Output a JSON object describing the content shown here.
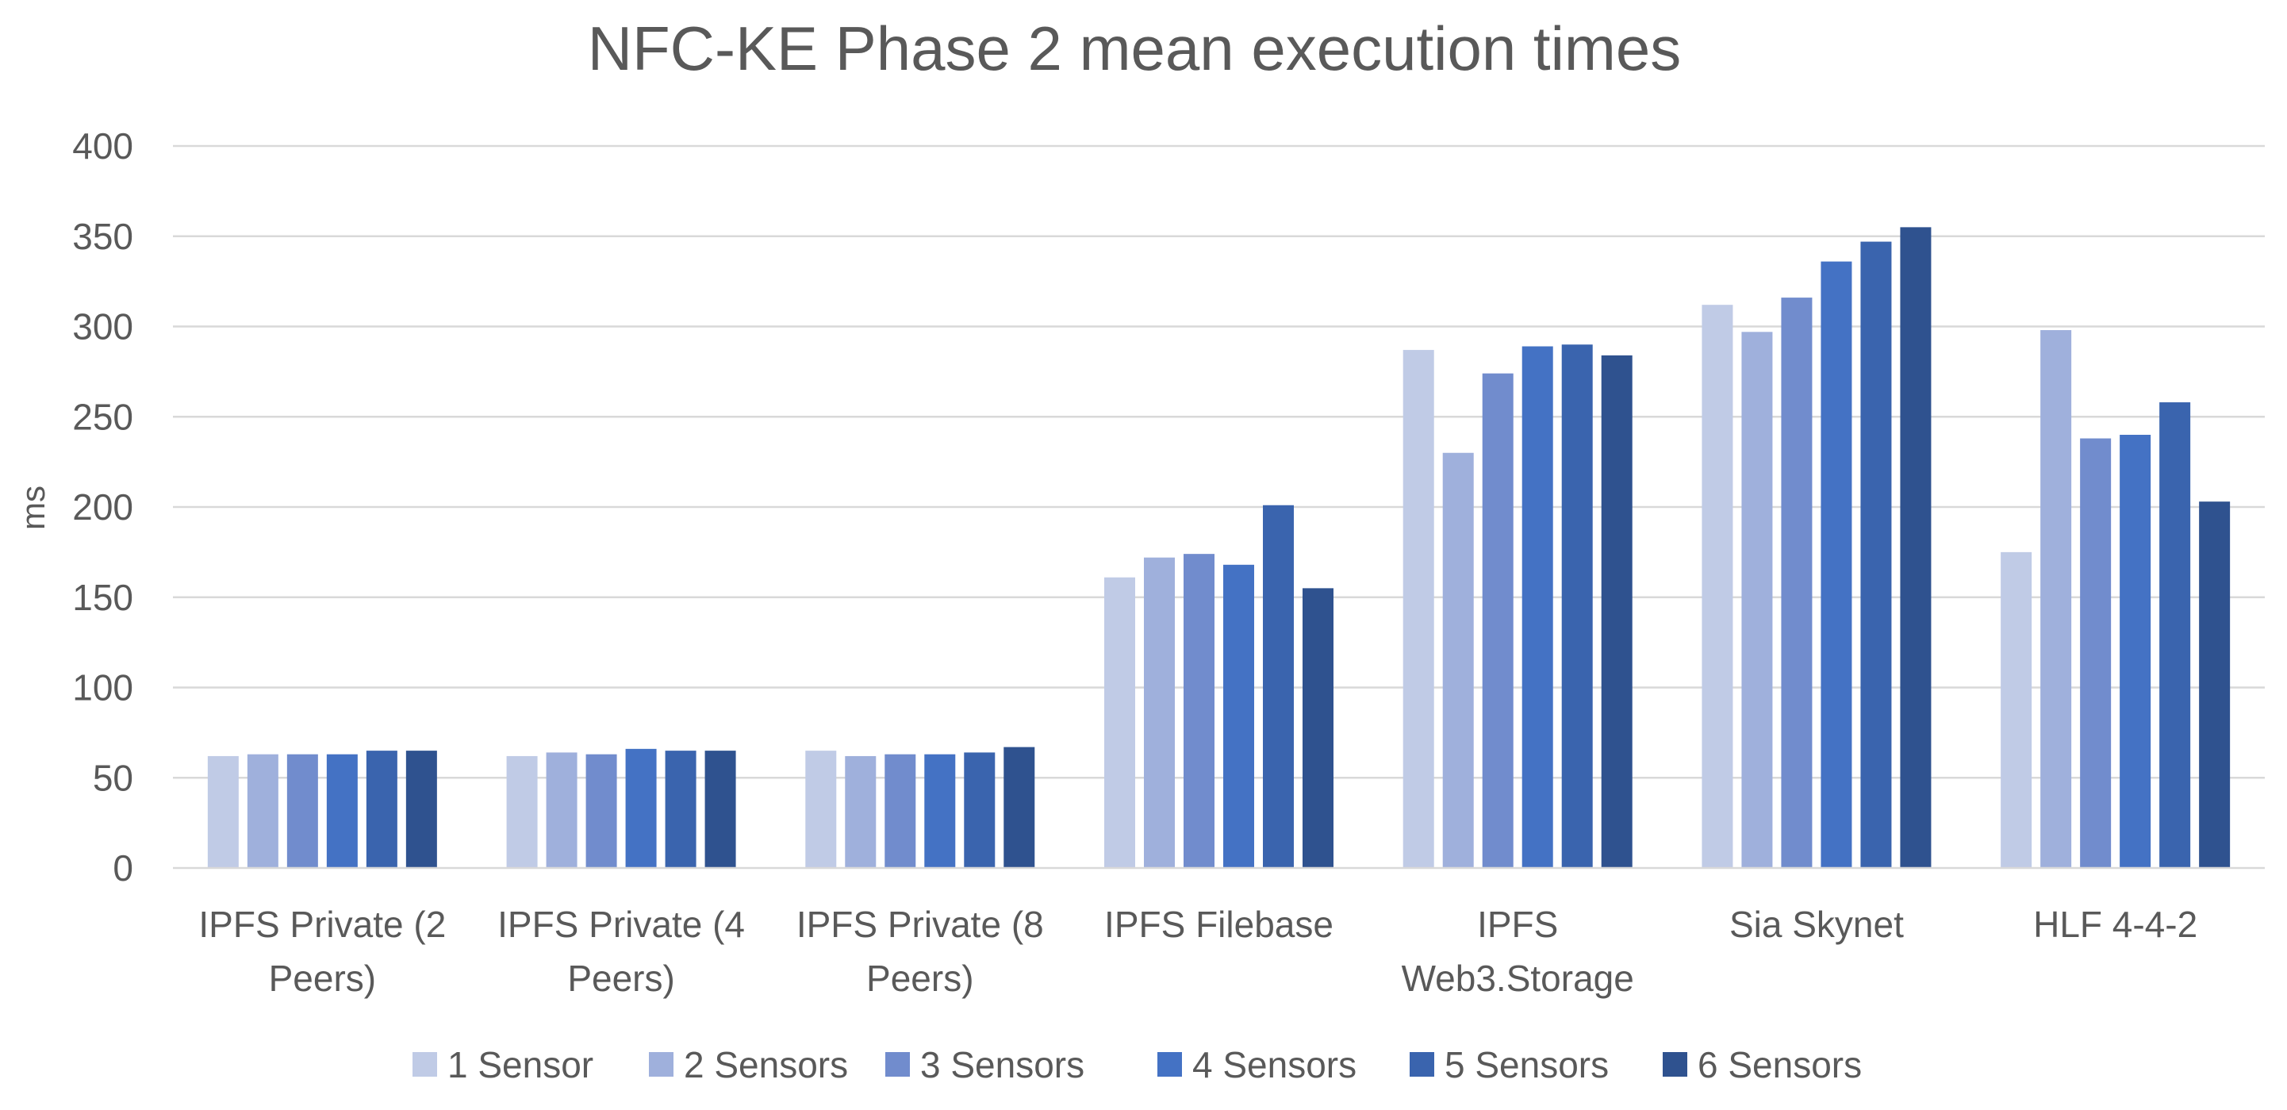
{
  "chart_data": {
    "type": "bar",
    "title": "NFC-KE Phase 2 mean execution times",
    "xlabel": "",
    "ylabel": "ms",
    "ylim": [
      0,
      400
    ],
    "yticks": [
      0,
      50,
      100,
      150,
      200,
      250,
      300,
      350,
      400
    ],
    "grid": true,
    "legend_position": "bottom",
    "categories": [
      [
        "IPFS Private (2",
        "Peers)"
      ],
      [
        "IPFS Private (4",
        "Peers)"
      ],
      [
        "IPFS Private (8",
        "Peers)"
      ],
      [
        "IPFS Filebase"
      ],
      [
        "IPFS",
        "Web3.Storage"
      ],
      [
        "Sia Skynet"
      ],
      [
        "HLF 4-4-2"
      ]
    ],
    "series": [
      {
        "name": "1 Sensor",
        "color": "#c0cbe6",
        "values": [
          62,
          62,
          65,
          161,
          287,
          312,
          175
        ]
      },
      {
        "name": "2 Sensors",
        "color": "#9fb0dc",
        "values": [
          63,
          64,
          62,
          172,
          230,
          297,
          298
        ]
      },
      {
        "name": "3 Sensors",
        "color": "#718ccd",
        "values": [
          63,
          63,
          63,
          174,
          274,
          316,
          238
        ]
      },
      {
        "name": "4 Sensors",
        "color": "#4472c4",
        "values": [
          63,
          66,
          63,
          168,
          289,
          336,
          240
        ]
      },
      {
        "name": "5 Sensors",
        "color": "#3a64ae",
        "values": [
          65,
          65,
          64,
          201,
          290,
          347,
          258
        ]
      },
      {
        "name": "6 Sensors",
        "color": "#2f528f",
        "values": [
          65,
          65,
          67,
          155,
          284,
          355,
          203
        ]
      }
    ]
  }
}
